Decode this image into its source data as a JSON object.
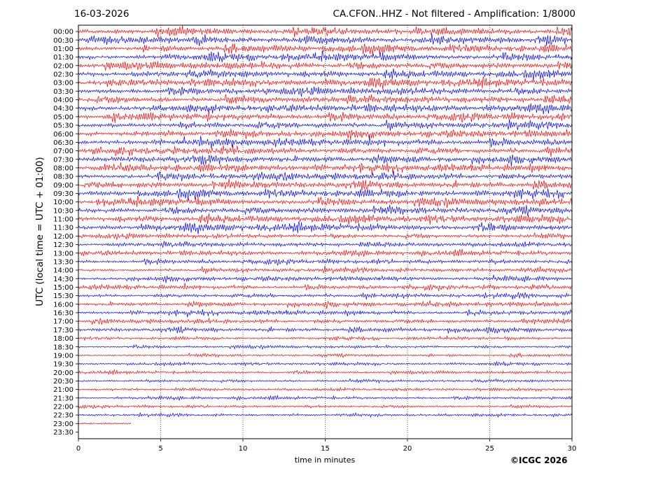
{
  "header": {
    "date": "16-03-2026",
    "title": "CA.CFON..HHZ - Not filtered - Amplification: 1/8000"
  },
  "copyright": "©ICGC 2026",
  "colors": {
    "red": "#ff0000",
    "blue": "#0000ff",
    "axis": "#000000",
    "grid": "#000000"
  },
  "chart_data": {
    "type": "line",
    "title": "CA.CFON..HHZ - Not filtered - Amplification: 1/8000",
    "xlabel": "time in minutes",
    "ylabel": "UTC (local time = UTC + 01:00)",
    "xlim": [
      0,
      30
    ],
    "xticks": [
      0,
      5,
      10,
      15,
      20,
      25,
      30
    ],
    "grid": "vertical dotted lines at x ticks",
    "rows": [
      "00:00",
      "00:30",
      "01:00",
      "01:30",
      "02:00",
      "02:30",
      "03:00",
      "03:30",
      "04:00",
      "04:30",
      "05:00",
      "05:30",
      "06:00",
      "06:30",
      "07:00",
      "07:30",
      "08:00",
      "08:30",
      "09:00",
      "09:30",
      "10:00",
      "10:30",
      "11:00",
      "11:30",
      "12:00",
      "12:30",
      "13:00",
      "13:30",
      "14:00",
      "14:30",
      "15:00",
      "15:30",
      "16:00",
      "16:30",
      "17:00",
      "17:30",
      "18:00",
      "18:30",
      "19:00",
      "19:30",
      "20:00",
      "20:30",
      "21:00",
      "21:30",
      "22:00",
      "22:30",
      "23:00",
      "23:30"
    ],
    "row_colors_alternate": [
      "red",
      "blue"
    ],
    "last_trace_row": "23:00",
    "last_trace_end_minute": 3.2,
    "rows_without_trace": [
      "23:30"
    ]
  }
}
